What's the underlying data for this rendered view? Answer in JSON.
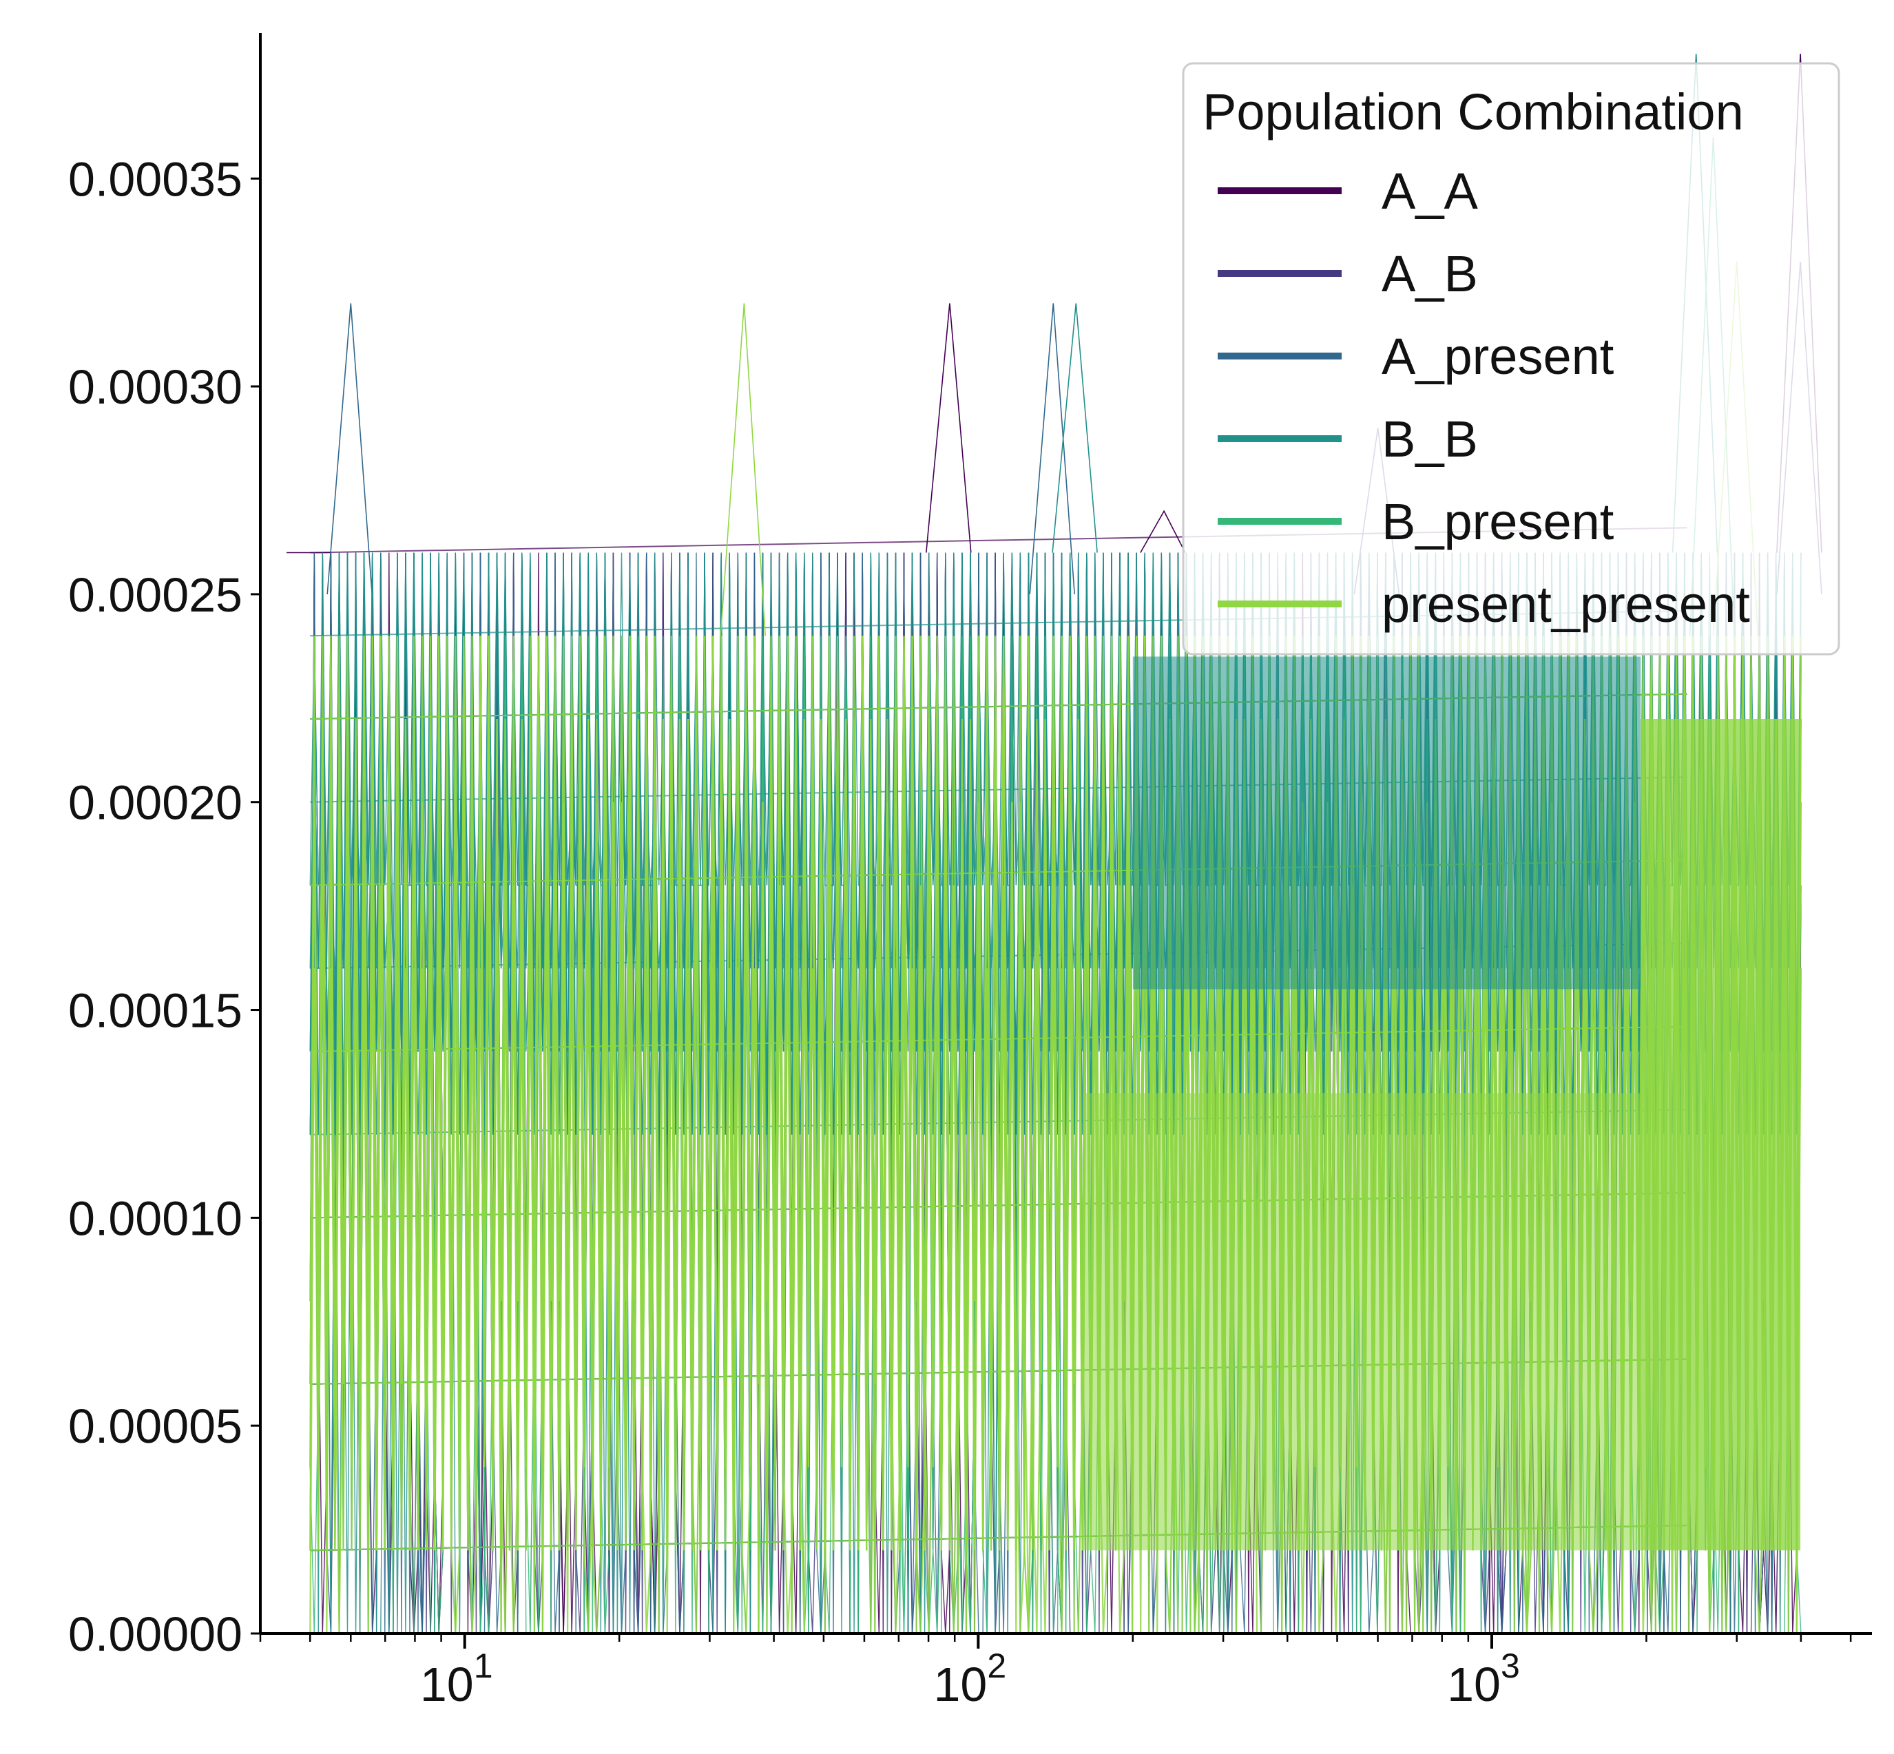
{
  "chart_data": {
    "type": "line",
    "title": "",
    "xlabel": "",
    "ylabel": "",
    "xscale": "log",
    "xlim": [
      4,
      5500
    ],
    "ylim": [
      0,
      0.000385
    ],
    "x_tick_labels": [
      {
        "base": "10",
        "exp": "1",
        "value": 10
      },
      {
        "base": "10",
        "exp": "2",
        "value": 100
      },
      {
        "base": "10",
        "exp": "3",
        "value": 1000
      }
    ],
    "y_tick_labels": [
      "0.00000",
      "0.00005",
      "0.00010",
      "0.00015",
      "0.00020",
      "0.00025",
      "0.00030",
      "0.00035"
    ],
    "y_tick_values": [
      0,
      5e-05,
      0.0001,
      0.00015,
      0.0002,
      0.00025,
      0.0003,
      0.00035
    ],
    "grid": false,
    "legend": {
      "title": "Population Combination",
      "placement": "upper right",
      "entries": [
        "A_A",
        "A_B",
        "A_present",
        "B_B",
        "B_present",
        "present_present"
      ]
    },
    "colors": {
      "A_A": "#440154",
      "A_B": "#443983",
      "A_present": "#31688e",
      "B_B": "#21918c",
      "B_present": "#35b779",
      "present_present": "#90d743"
    },
    "x_range": [
      5,
      4000
    ],
    "quantization_step": 2e-05,
    "series": [
      {
        "name": "A_A",
        "dense_band": [
          2e-05,
          0.00026
        ],
        "spikes": [
          [
            5,
            0.00026
          ],
          [
            88,
            0.00032
          ],
          [
            230,
            0.00027
          ],
          [
            3990,
            0.00038
          ]
        ]
      },
      {
        "name": "A_B",
        "dense_band": [
          2e-05,
          0.00025
        ],
        "spikes": [
          [
            600,
            0.00029
          ],
          [
            3990,
            0.00033
          ]
        ]
      },
      {
        "name": "A_present",
        "dense_band": [
          2e-05,
          0.00025
        ],
        "spikes": [
          [
            6,
            0.00032
          ],
          [
            140,
            0.00032
          ]
        ]
      },
      {
        "name": "B_B",
        "dense_band": [
          0.00012,
          0.00026
        ],
        "spikes": [
          [
            155,
            0.00032
          ],
          [
            2500,
            0.00038
          ]
        ]
      },
      {
        "name": "B_present",
        "dense_band": [
          2e-05,
          0.00024
        ],
        "spikes": [
          [
            2700,
            0.00036
          ]
        ]
      },
      {
        "name": "present_present",
        "dense_band": [
          2e-05,
          0.00024
        ],
        "spikes": [
          [
            35,
            0.00032
          ],
          [
            3000,
            0.00033
          ]
        ]
      }
    ]
  }
}
